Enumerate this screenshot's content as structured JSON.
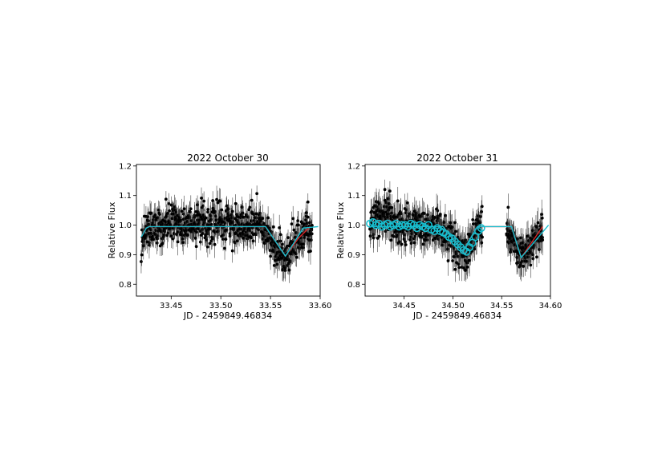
{
  "chart_data": [
    {
      "type": "scatter",
      "title": "2022 October 30",
      "xlabel": "JD - 2459849.46834",
      "ylabel": "Relative Flux",
      "xlim": [
        33.415,
        33.6
      ],
      "ylim": [
        0.76,
        1.205
      ],
      "xticks": [
        "33.45",
        "33.50",
        "33.55",
        "33.60"
      ],
      "xtick_values": [
        33.45,
        33.5,
        33.55,
        33.6
      ],
      "yticks": [
        "0.8",
        "0.9",
        "1.0",
        "1.1",
        "1.2"
      ],
      "ytick_values": [
        0.8,
        0.9,
        1.0,
        1.1,
        1.2
      ],
      "grid": false,
      "series": [
        {
          "kind": "points-with-errorbars",
          "color": "#000000",
          "x_range": [
            33.42,
            33.592
          ],
          "n_points": 650,
          "typical_error": 0.035,
          "x_anchors": [
            33.42,
            33.425,
            33.43,
            33.44,
            33.45,
            33.47,
            33.5,
            33.52,
            33.54,
            33.545,
            33.55,
            33.555,
            33.56,
            33.565,
            33.57,
            33.575,
            33.58,
            33.585,
            33.592
          ],
          "y_anchors": [
            0.96,
            0.99,
            1.0,
            1.0,
            1.0,
            1.005,
            1.01,
            1.005,
            1.0,
            0.97,
            0.95,
            0.92,
            0.905,
            0.895,
            0.91,
            0.94,
            0.965,
            0.985,
            0.99
          ],
          "scatter": 0.055
        },
        {
          "kind": "line",
          "color": "#d62728",
          "x": [
            33.42,
            33.425,
            33.428,
            33.545,
            33.565,
            33.578,
            33.59
          ],
          "y": [
            0.96,
            0.99,
            0.995,
            0.995,
            0.895,
            0.955,
            0.995
          ]
        },
        {
          "kind": "line",
          "color": "#17becf",
          "x": [
            33.42,
            33.425,
            33.428,
            33.545,
            33.565,
            33.583,
            33.598
          ],
          "y": [
            0.96,
            0.99,
            0.995,
            0.995,
            0.895,
            0.99,
            0.995
          ]
        }
      ]
    },
    {
      "type": "scatter",
      "title": "2022 October 31",
      "xlabel": "JD - 2459849.46834",
      "ylabel": "Relative Flux",
      "xlim": [
        34.41,
        34.6
      ],
      "ylim": [
        0.76,
        1.205
      ],
      "xticks": [
        "34.45",
        "34.50",
        "34.55",
        "34.60"
      ],
      "xtick_values": [
        34.45,
        34.5,
        34.55,
        34.6
      ],
      "yticks": [
        "0.8",
        "0.9",
        "1.0",
        "1.1",
        "1.2"
      ],
      "ytick_values": [
        0.8,
        0.9,
        1.0,
        1.1,
        1.2
      ],
      "grid": false,
      "series": [
        {
          "kind": "points-with-errorbars",
          "color": "#000000",
          "x_range": [
            34.415,
            34.53
          ],
          "n_points": 450,
          "typical_error": 0.04,
          "x_anchors": [
            34.415,
            34.43,
            34.45,
            34.47,
            34.48,
            34.49,
            34.5,
            34.505,
            34.51,
            34.515,
            34.52,
            34.525,
            34.53
          ],
          "y_anchors": [
            1.02,
            1.03,
            1.0,
            1.0,
            0.99,
            0.97,
            0.94,
            0.92,
            0.9,
            0.92,
            0.95,
            0.985,
            1.0
          ],
          "scatter": 0.055
        },
        {
          "kind": "points-with-errorbars",
          "color": "#000000",
          "x_range": [
            34.555,
            34.592
          ],
          "n_points": 150,
          "typical_error": 0.04,
          "x_anchors": [
            34.555,
            34.56,
            34.565,
            34.57,
            34.575,
            34.58,
            34.585,
            34.592
          ],
          "y_anchors": [
            0.99,
            0.96,
            0.92,
            0.9,
            0.915,
            0.935,
            0.96,
            0.985
          ],
          "scatter": 0.05
        },
        {
          "kind": "open-circles",
          "color": "#17becf",
          "x": [
            34.415,
            34.418,
            34.421,
            34.424,
            34.427,
            34.43,
            34.433,
            34.436,
            34.439,
            34.442,
            34.445,
            34.448,
            34.451,
            34.454,
            34.457,
            34.46,
            34.463,
            34.466,
            34.469,
            34.472,
            34.475,
            34.478,
            34.481,
            34.484,
            34.487,
            34.49,
            34.493,
            34.496,
            34.499,
            34.502,
            34.505,
            34.508,
            34.511,
            34.514,
            34.517,
            34.52,
            34.523,
            34.526,
            34.529
          ],
          "y": [
            1.005,
            1.01,
            1.0,
            1.005,
            0.995,
            1.0,
            1.005,
            0.995,
            1.0,
            1.005,
            0.995,
            1.0,
            1.0,
            0.995,
            1.005,
            1.0,
            0.99,
            1.0,
            0.995,
            0.99,
            1.0,
            0.985,
            0.98,
            0.99,
            0.98,
            0.975,
            0.97,
            0.96,
            0.955,
            0.945,
            0.935,
            0.925,
            0.915,
            0.91,
            0.925,
            0.94,
            0.96,
            0.98,
            0.99
          ]
        },
        {
          "kind": "line",
          "color": "#d62728",
          "x": [
            34.49,
            34.51,
            34.525,
            34.56,
            34.57,
            34.592
          ],
          "y": [
            0.995,
            0.91,
            0.995,
            0.995,
            0.89,
            0.995
          ]
        },
        {
          "kind": "line",
          "color": "#17becf",
          "x": [
            34.415,
            34.49,
            34.51,
            34.525,
            34.56,
            34.57,
            34.598
          ],
          "y": [
            0.995,
            0.995,
            0.91,
            0.995,
            0.995,
            0.89,
            1.0
          ]
        }
      ]
    }
  ]
}
